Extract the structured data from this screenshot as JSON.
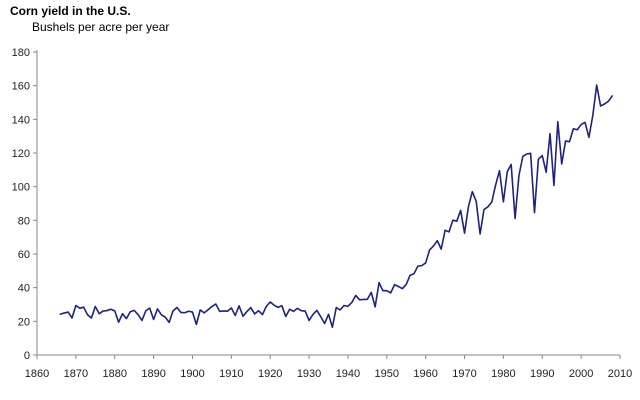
{
  "chart_data": {
    "type": "line",
    "title": "Corn yield in the U.S.",
    "subtitle": "Bushels per acre per year",
    "xlabel": "",
    "ylabel": "",
    "xlim": [
      1860,
      2010
    ],
    "ylim": [
      0,
      180
    ],
    "x_ticks": [
      1860,
      1870,
      1880,
      1890,
      1900,
      1910,
      1920,
      1930,
      1940,
      1950,
      1960,
      1970,
      1980,
      1990,
      2000,
      2010
    ],
    "y_ticks": [
      0,
      20,
      40,
      60,
      80,
      100,
      120,
      140,
      160,
      180
    ],
    "grid": false,
    "legend": "none",
    "line_color": "#1f237a",
    "series": [
      {
        "x": [
          1866,
          1867,
          1868,
          1869,
          1870,
          1871,
          1872,
          1873,
          1874,
          1875,
          1876,
          1877,
          1878,
          1879,
          1880,
          1881,
          1882,
          1883,
          1884,
          1885,
          1886,
          1887,
          1888,
          1889,
          1890,
          1891,
          1892,
          1893,
          1894,
          1895,
          1896,
          1897,
          1898,
          1899,
          1900,
          1901,
          1902,
          1903,
          1904,
          1905,
          1906,
          1907,
          1908,
          1909,
          1910,
          1911,
          1912,
          1913,
          1914,
          1915,
          1916,
          1917,
          1918,
          1919,
          1920,
          1921,
          1922,
          1923,
          1924,
          1925,
          1926,
          1927,
          1928,
          1929,
          1930,
          1931,
          1932,
          1933,
          1934,
          1935,
          1936,
          1937,
          1938,
          1939,
          1940,
          1941,
          1942,
          1943,
          1944,
          1945,
          1946,
          1947,
          1948,
          1949,
          1950,
          1951,
          1952,
          1953,
          1954,
          1955,
          1956,
          1957,
          1958,
          1959,
          1960,
          1961,
          1962,
          1963,
          1964,
          1965,
          1966,
          1967,
          1968,
          1969,
          1970,
          1971,
          1972,
          1973,
          1974,
          1975,
          1976,
          1977,
          1978,
          1979,
          1980,
          1981,
          1982,
          1983,
          1984,
          1985,
          1986,
          1987,
          1988,
          1989,
          1990,
          1991,
          1992,
          1993,
          1994,
          1995,
          1996,
          1997,
          1998,
          1999,
          2000,
          2001,
          2002,
          2003,
          2004,
          2005,
          2006,
          2007,
          2008
        ],
        "values": [
          24.3,
          24.9,
          25.5,
          22.0,
          29.4,
          27.8,
          28.4,
          23.9,
          22.0,
          28.8,
          24.5,
          26.1,
          26.4,
          27.2,
          26.2,
          19.5,
          24.5,
          21.6,
          25.7,
          26.5,
          24.0,
          20.5,
          26.3,
          27.9,
          21.1,
          27.4,
          23.9,
          22.5,
          19.4,
          26.2,
          28.2,
          25.3,
          25.1,
          26.0,
          25.5,
          18.2,
          26.8,
          25.0,
          26.8,
          28.8,
          30.3,
          25.9,
          26.2,
          26.0,
          27.9,
          23.5,
          29.2,
          23.0,
          25.8,
          28.2,
          24.4,
          26.3,
          24.0,
          28.9,
          31.5,
          29.6,
          28.3,
          29.3,
          22.9,
          27.2,
          25.9,
          27.7,
          26.3,
          26.1,
          20.5,
          24.1,
          26.5,
          22.8,
          18.7,
          24.2,
          16.5,
          28.2,
          26.8,
          29.4,
          28.9,
          31.2,
          35.4,
          32.8,
          33.0,
          33.1,
          37.2,
          28.6,
          43.0,
          38.2,
          38.2,
          36.9,
          41.8,
          40.7,
          39.4,
          42.0,
          47.4,
          48.3,
          52.8,
          53.1,
          54.7,
          62.4,
          64.7,
          67.9,
          62.9,
          74.1,
          73.1,
          80.1,
          79.5,
          85.9,
          72.4,
          88.1,
          97.0,
          91.3,
          71.9,
          86.4,
          88.0,
          90.8,
          101.0,
          109.5,
          91.0,
          108.9,
          113.2,
          81.1,
          106.7,
          118.0,
          119.4,
          119.8,
          84.6,
          116.3,
          118.5,
          108.6,
          131.5,
          100.7,
          138.6,
          113.5,
          127.1,
          126.7,
          134.4,
          133.8,
          136.9,
          138.2,
          129.3,
          142.2,
          160.4,
          147.9,
          149.1,
          150.7,
          153.9
        ]
      }
    ]
  }
}
